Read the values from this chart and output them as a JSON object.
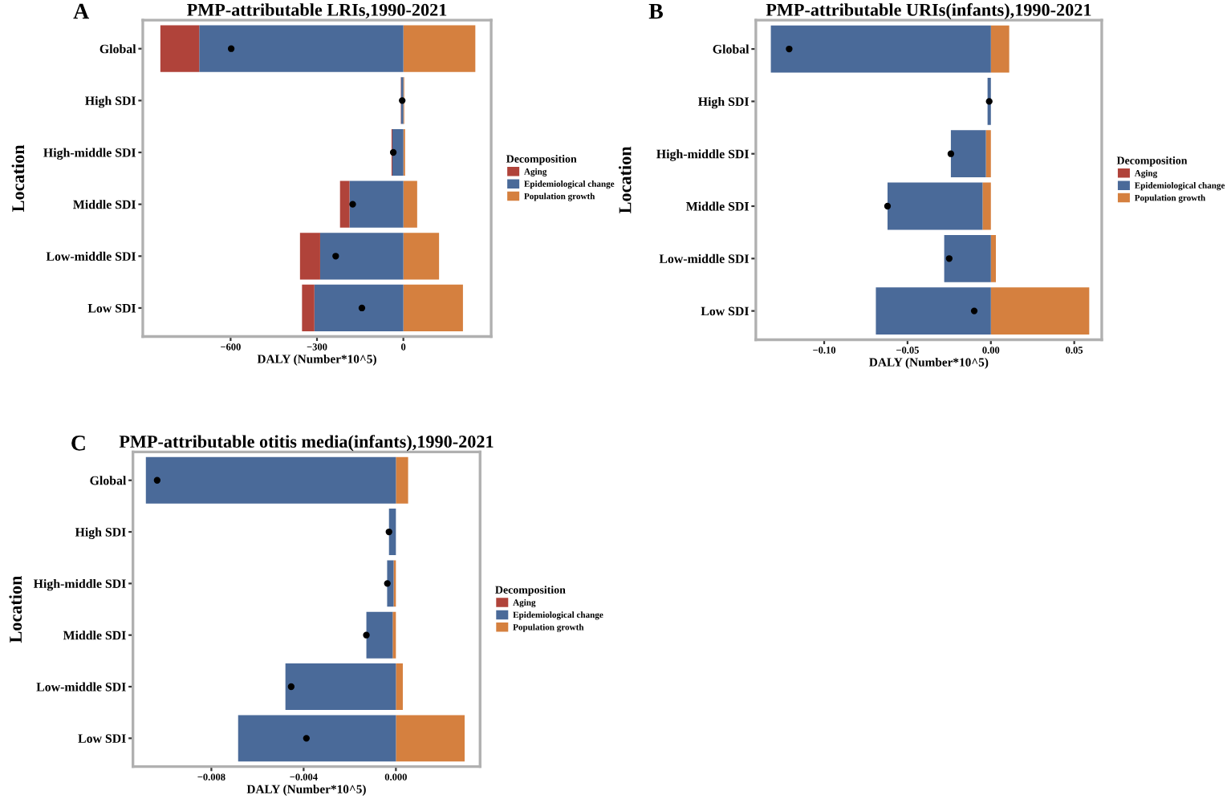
{
  "chart_data": [
    {
      "type": "bar",
      "orientation": "horizontal",
      "stacked": true,
      "title": "PMP-attributable LRIs,1990-2021",
      "xlabel": "DALY (Number*10^5)",
      "ylabel": "Location",
      "legend_title": "Decomposition",
      "legend": "right",
      "grid": false,
      "annotations": [
        "A"
      ],
      "categories": [
        "Global",
        "High SDI",
        "High-middle SDI",
        "Middle SDI",
        "Low-middle SDI",
        "Low SDI"
      ],
      "xlim": [
        -905,
        305
      ],
      "xticks": [
        {
          "value": -600,
          "label": "−600"
        },
        {
          "value": -300,
          "label": "−300"
        },
        {
          "value": 0,
          "label": "0"
        }
      ],
      "series": [
        {
          "name": "Population growth",
          "color": "#d5803f",
          "values": [
            250,
            3,
            6,
            48,
            124,
            207
          ]
        },
        {
          "name": "Epidemiological change",
          "color": "#4a6a99",
          "values": [
            -709,
            -8,
            -38,
            -187,
            -289,
            -309
          ]
        },
        {
          "name": "Aging",
          "color": "#b0433a",
          "values": [
            -135,
            -1,
            -3,
            -33,
            -70,
            -43
          ]
        },
        {
          "type": "scatter",
          "color": "#000000",
          "values": [
            -598,
            -4,
            -35,
            -176,
            -235,
            -144
          ]
        }
      ]
    },
    {
      "type": "bar",
      "orientation": "horizontal",
      "stacked": true,
      "title": "PMP-attributable URIs(infants),1990-2021",
      "xlabel": "DALY (Number*10^5)",
      "ylabel": "Location",
      "legend_title": "Decomposition",
      "legend": "right",
      "grid": false,
      "annotations": [
        "B"
      ],
      "categories": [
        "Global",
        "High SDI",
        "High-middle SDI",
        "Middle SDI",
        "Low-middle SDI",
        "Low SDI"
      ],
      "xlim": [
        -0.141,
        0.0665
      ],
      "xticks": [
        {
          "value": -0.1,
          "label": "−0.10"
        },
        {
          "value": -0.05,
          "label": "−0.05"
        },
        {
          "value": 0,
          "label": "0.00"
        },
        {
          "value": 0.05,
          "label": "0.05"
        }
      ],
      "series": [
        {
          "name": "Population growth",
          "color": "#d5803f",
          "values": [
            0.011,
            null,
            -0.003,
            -0.005,
            0.003,
            0.059
          ]
        },
        {
          "name": "Epidemiological change",
          "color": "#4a6a99",
          "values": [
            -0.132,
            -0.002,
            -0.021,
            -0.057,
            -0.028,
            -0.069
          ]
        },
        {
          "name": "Aging",
          "color": "#b0433a",
          "values": [
            0,
            0,
            0,
            0,
            0,
            0
          ]
        },
        {
          "type": "scatter",
          "color": "#000000",
          "values": [
            -0.121,
            -0.001,
            -0.024,
            -0.062,
            -0.025,
            -0.01
          ]
        }
      ]
    },
    {
      "type": "bar",
      "orientation": "horizontal",
      "stacked": true,
      "title": "PMP-attributable otitis media(infants),1990-2021",
      "xlabel": "DALY (Number*10^5)",
      "ylabel": "Location",
      "legend_title": "Decomposition",
      "legend": "right",
      "grid": false,
      "annotations": [
        "C"
      ],
      "categories": [
        "Global",
        "High SDI",
        "High-middle SDI",
        "Middle SDI",
        "Low-middle SDI",
        "Low SDI"
      ],
      "xlim": [
        -0.0114,
        0.00365
      ],
      "xticks": [
        {
          "value": -0.008,
          "label": "−0.008"
        },
        {
          "value": -0.004,
          "label": "−0.004"
        },
        {
          "value": 0,
          "label": "0.000"
        }
      ],
      "series": [
        {
          "name": "Population growth",
          "color": "#d5803f",
          "values": [
            0.00053,
            null,
            -0.0001,
            -0.00014,
            0.0003,
            0.00298
          ]
        },
        {
          "name": "Epidemiological change",
          "color": "#4a6a99",
          "values": [
            -0.01084,
            -0.0003,
            -0.00028,
            -0.00114,
            -0.00479,
            -0.00684
          ]
        },
        {
          "name": "Aging",
          "color": "#b0433a",
          "values": [
            0,
            0,
            0,
            0,
            0,
            0
          ]
        },
        {
          "type": "scatter",
          "color": "#000000",
          "values": [
            -0.01035,
            -0.0003,
            -0.00037,
            -0.00128,
            -0.00454,
            -0.00388
          ]
        }
      ]
    }
  ]
}
